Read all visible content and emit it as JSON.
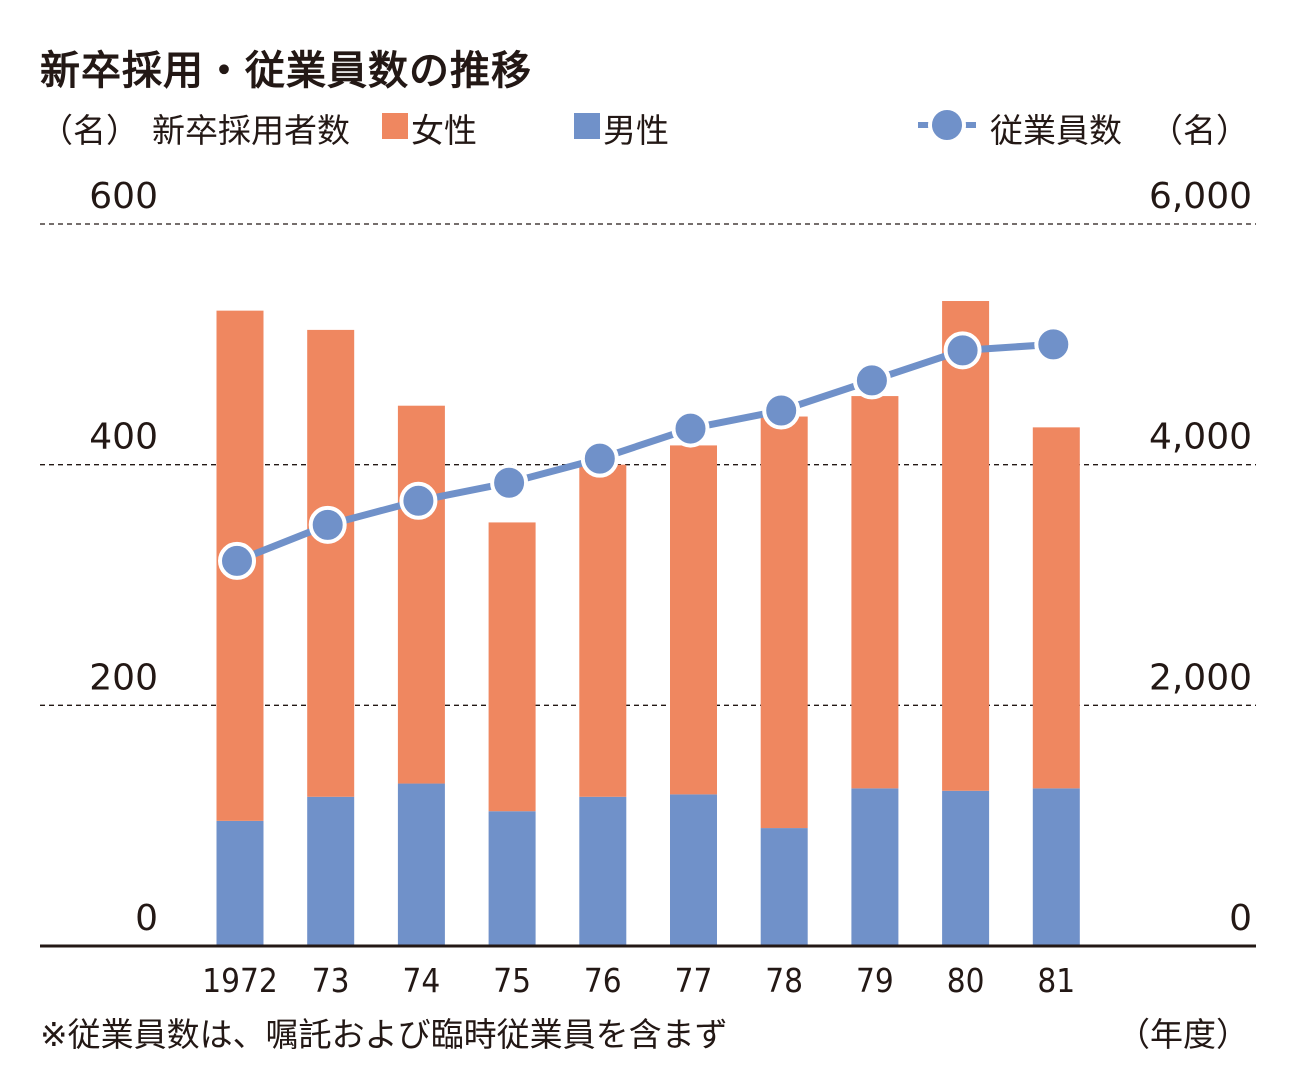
{
  "chart_data": {
    "type": "bar",
    "stacked": true,
    "title": "新卒採用・従業員数の推移",
    "left_axis_unit": "（名）",
    "right_axis_unit": "（名）",
    "bar_group_label": "新卒採用者数",
    "x_unit": "（年度）",
    "footnote": "※従業員数は、嘱託および臨時従業員を含まず",
    "categories": [
      "1972",
      "73",
      "74",
      "75",
      "76",
      "77",
      "78",
      "79",
      "80",
      "81"
    ],
    "series": [
      {
        "name": "男性",
        "axis": "left",
        "color": "#7091c9",
        "values": [
          104,
          124,
          135,
          112,
          124,
          126,
          98,
          131,
          129,
          131
        ]
      },
      {
        "name": "女性",
        "axis": "left",
        "color": "#ef8760",
        "values": [
          424,
          388,
          314,
          240,
          276,
          290,
          342,
          326,
          407,
          300
        ]
      },
      {
        "name": "従業員数",
        "type": "line",
        "axis": "right",
        "color": "#7091c9",
        "values": [
          3200,
          3500,
          3700,
          3850,
          4050,
          4300,
          4450,
          4700,
          4950,
          5000
        ]
      }
    ],
    "y_left": {
      "min": 0,
      "max": 600,
      "ticks": [
        "0",
        "200",
        "400",
        "600"
      ]
    },
    "y_right": {
      "min": 0,
      "max": 6000,
      "ticks": [
        "0",
        "2,000",
        "4,000",
        "6,000"
      ]
    },
    "grid": "dashed horizontal",
    "legend_position": "top"
  }
}
